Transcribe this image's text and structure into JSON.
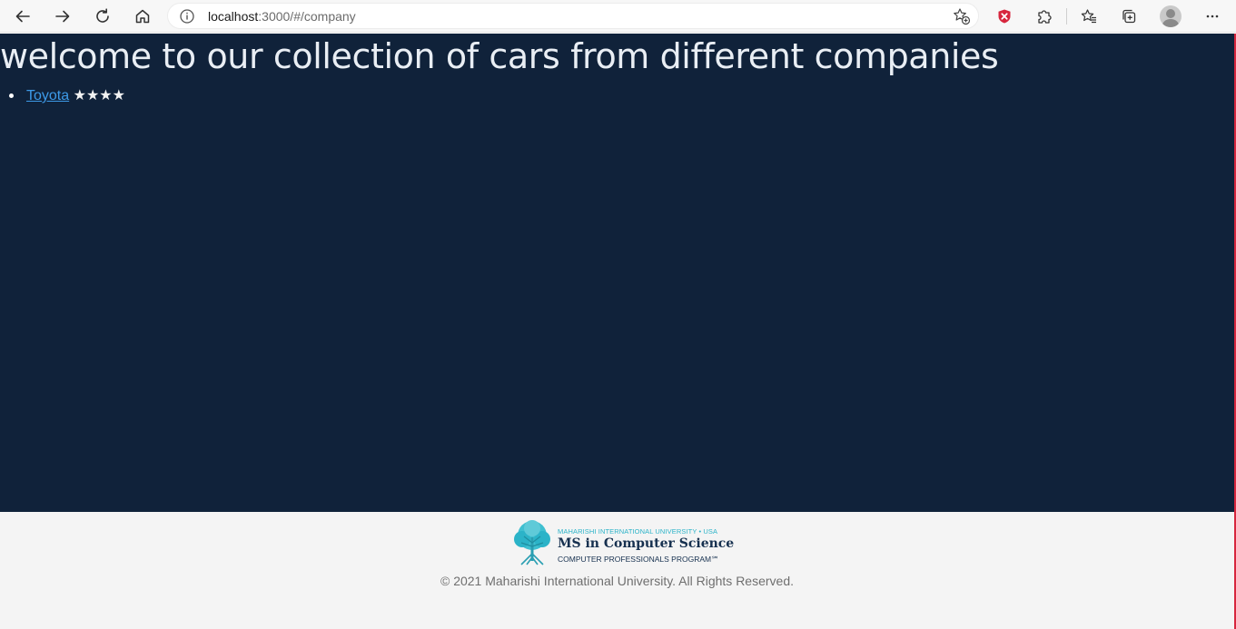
{
  "browser": {
    "address_host": "localhost",
    "address_path": ":3000/#/company",
    "icons": {
      "back": "back-arrow-icon",
      "forward": "forward-arrow-icon",
      "refresh": "refresh-icon",
      "home": "home-icon",
      "info": "info-icon",
      "add_favorite": "add-favorite-icon",
      "shield": "shield-extension-icon",
      "extensions": "puzzle-icon",
      "favorites": "favorites-icon",
      "collections": "collections-icon",
      "profile": "profile-avatar",
      "menu": "more-menu-icon"
    },
    "colors": {
      "shield_red": "#d7263d",
      "accent_frame": "#d7263d"
    }
  },
  "page": {
    "heading": "welcome to our collection of cars from different companies",
    "companies": [
      {
        "name": "Toyota",
        "rating_stars": "★★★★",
        "rating": 4
      }
    ],
    "colors": {
      "background": "#10223a",
      "link": "#3d9ae8",
      "footer_background": "#f4f4f4"
    }
  },
  "footer": {
    "logo": {
      "line1": "MAHARISHI INTERNATIONAL UNIVERSITY • USA",
      "line2": "MS in Computer Science",
      "line3": "COMPUTER PROFESSIONALS PROGRAM℠"
    },
    "copyright": "© 2021 Maharishi International University. All Rights Reserved."
  }
}
